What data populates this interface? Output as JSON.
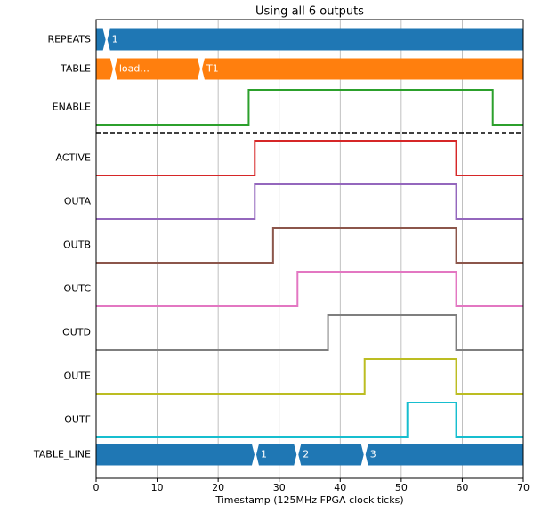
{
  "chart_data": {
    "type": "timing",
    "title": "Using all 6 outputs",
    "x_label": "Timestamp (125MHz FPGA clock ticks)",
    "xlim": [
      0,
      70
    ],
    "xticks": [
      0,
      10,
      20,
      30,
      40,
      50,
      60,
      70
    ],
    "grid": true,
    "separator_after": 2,
    "signals": [
      {
        "name": "REPEATS",
        "kind": "bus",
        "color": "#1f77b4",
        "x": [
          1.7
        ],
        "labels": [
          "1"
        ]
      },
      {
        "name": "TABLE",
        "kind": "bus",
        "color": "#ff7f0e",
        "x": [
          2.9,
          17.2
        ],
        "labels": [
          "load...",
          "T1"
        ]
      },
      {
        "name": "ENABLE",
        "kind": "digital",
        "color": "#2ca02c",
        "x": [
          25,
          65
        ]
      },
      {
        "name": "ACTIVE",
        "kind": "digital",
        "color": "#d62728",
        "x": [
          26,
          59
        ]
      },
      {
        "name": "OUTA",
        "kind": "digital",
        "color": "#9467bd",
        "x": [
          26,
          59
        ]
      },
      {
        "name": "OUTB",
        "kind": "digital",
        "color": "#8c564b",
        "x": [
          29,
          59
        ]
      },
      {
        "name": "OUTC",
        "kind": "digital",
        "color": "#e377c2",
        "x": [
          33,
          59
        ]
      },
      {
        "name": "OUTD",
        "kind": "digital",
        "color": "#7f7f7f",
        "x": [
          38,
          59
        ]
      },
      {
        "name": "OUTE",
        "kind": "digital",
        "color": "#bcbd22",
        "x": [
          44,
          59
        ]
      },
      {
        "name": "OUTF",
        "kind": "digital",
        "color": "#17becf",
        "x": [
          51,
          59
        ]
      },
      {
        "name": "TABLE_LINE",
        "kind": "bus",
        "color": "#1f77b4",
        "x": [
          26.1,
          33,
          44
        ],
        "labels": [
          "1",
          "2",
          "3"
        ]
      }
    ]
  }
}
